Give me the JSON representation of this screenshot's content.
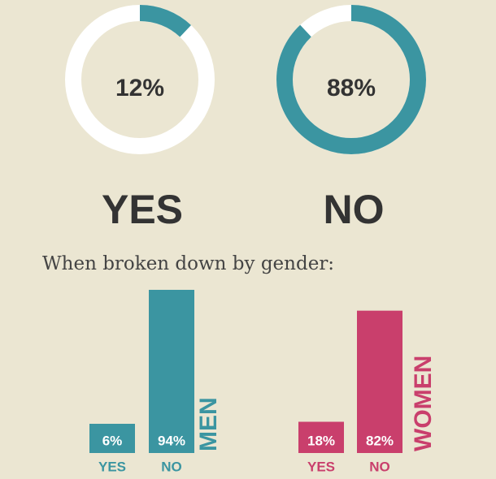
{
  "chart_data": [
    {
      "type": "donut",
      "categories": [
        "YES",
        "NO"
      ],
      "values": [
        12,
        88
      ],
      "value_labels": [
        "12%",
        "88%"
      ],
      "color": "#3b95a1",
      "track_color": "#ffffff"
    },
    {
      "type": "bar",
      "title": "When broken down by gender:",
      "categories": [
        "YES",
        "NO"
      ],
      "series": [
        {
          "name": "MEN",
          "color": "#3b95a1",
          "values": [
            6,
            94
          ],
          "value_labels": [
            "6%",
            "94%"
          ]
        },
        {
          "name": "WOMEN",
          "color": "#c93f6c",
          "values": [
            18,
            82
          ],
          "value_labels": [
            "18%",
            "82%"
          ]
        }
      ]
    }
  ]
}
